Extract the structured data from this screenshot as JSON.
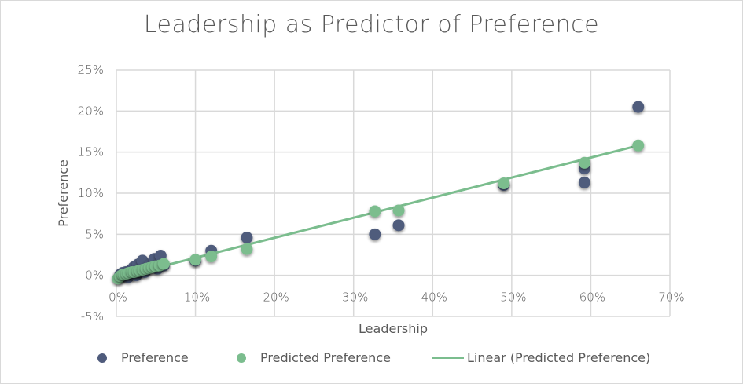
{
  "chart_data": {
    "type": "scatter",
    "title": "Leadership as Predictor of Preference",
    "xlabel": "Leadership",
    "ylabel": "Preference",
    "xlim": [
      0,
      70
    ],
    "ylim": [
      -5,
      25
    ],
    "x_ticks": [
      "0%",
      "10%",
      "20%",
      "30%",
      "40%",
      "50%",
      "60%",
      "70%"
    ],
    "y_ticks": [
      "25%",
      "20%",
      "15%",
      "10%",
      "5%",
      "0%",
      "-5%"
    ],
    "grid": true,
    "legend_position": "bottom",
    "series": [
      {
        "name": "Preference",
        "color": "#4f5b7c",
        "points": [
          [
            0.3,
            -0.3
          ],
          [
            0.5,
            0.1
          ],
          [
            0.8,
            0.3
          ],
          [
            1.0,
            0.0
          ],
          [
            1.2,
            0.4
          ],
          [
            1.5,
            -0.2
          ],
          [
            1.8,
            0.6
          ],
          [
            2.0,
            0.2
          ],
          [
            2.2,
            1.0
          ],
          [
            2.5,
            0.0
          ],
          [
            2.7,
            1.3
          ],
          [
            3.0,
            0.5
          ],
          [
            3.3,
            1.8
          ],
          [
            3.6,
            0.4
          ],
          [
            4.0,
            1.0
          ],
          [
            4.4,
            1.4
          ],
          [
            4.8,
            2.0
          ],
          [
            5.2,
            0.8
          ],
          [
            5.6,
            2.4
          ],
          [
            6.0,
            1.2
          ],
          [
            10.0,
            1.8
          ],
          [
            12.0,
            3.0
          ],
          [
            16.5,
            4.6
          ],
          [
            32.7,
            5.0
          ],
          [
            35.7,
            6.1
          ],
          [
            49.0,
            11.0
          ],
          [
            59.2,
            11.3
          ],
          [
            59.2,
            13.0
          ],
          [
            66.0,
            20.5
          ]
        ]
      },
      {
        "name": "Predicted Preference",
        "color": "#7bbd8e",
        "points": [
          [
            0.2,
            -0.4
          ],
          [
            0.5,
            -0.1
          ],
          [
            0.8,
            0.1
          ],
          [
            1.0,
            0.1
          ],
          [
            1.3,
            0.2
          ],
          [
            1.6,
            0.3
          ],
          [
            2.0,
            0.4
          ],
          [
            2.3,
            0.4
          ],
          [
            2.7,
            0.5
          ],
          [
            3.0,
            0.6
          ],
          [
            3.4,
            0.7
          ],
          [
            3.8,
            0.8
          ],
          [
            4.2,
            0.9
          ],
          [
            4.6,
            1.0
          ],
          [
            5.0,
            1.1
          ],
          [
            5.5,
            1.2
          ],
          [
            6.0,
            1.4
          ],
          [
            10.0,
            1.9
          ],
          [
            12.0,
            2.3
          ],
          [
            16.5,
            3.2
          ],
          [
            32.7,
            7.8
          ],
          [
            35.7,
            7.9
          ],
          [
            49.0,
            11.2
          ],
          [
            59.2,
            13.7
          ],
          [
            66.0,
            15.8
          ]
        ]
      },
      {
        "name": "Linear (Predicted Preference)",
        "type": "line",
        "color": "#7bbd8e",
        "points": [
          [
            0,
            -0.3
          ],
          [
            66.0,
            15.8
          ]
        ]
      }
    ]
  },
  "legend": {
    "items": [
      {
        "label": "Preference",
        "color": "#4f5b7c"
      },
      {
        "label": "Predicted Preference",
        "color": "#7bbd8e"
      },
      {
        "label": "Linear (Predicted Preference)",
        "color": "#7bbd8e"
      }
    ]
  }
}
